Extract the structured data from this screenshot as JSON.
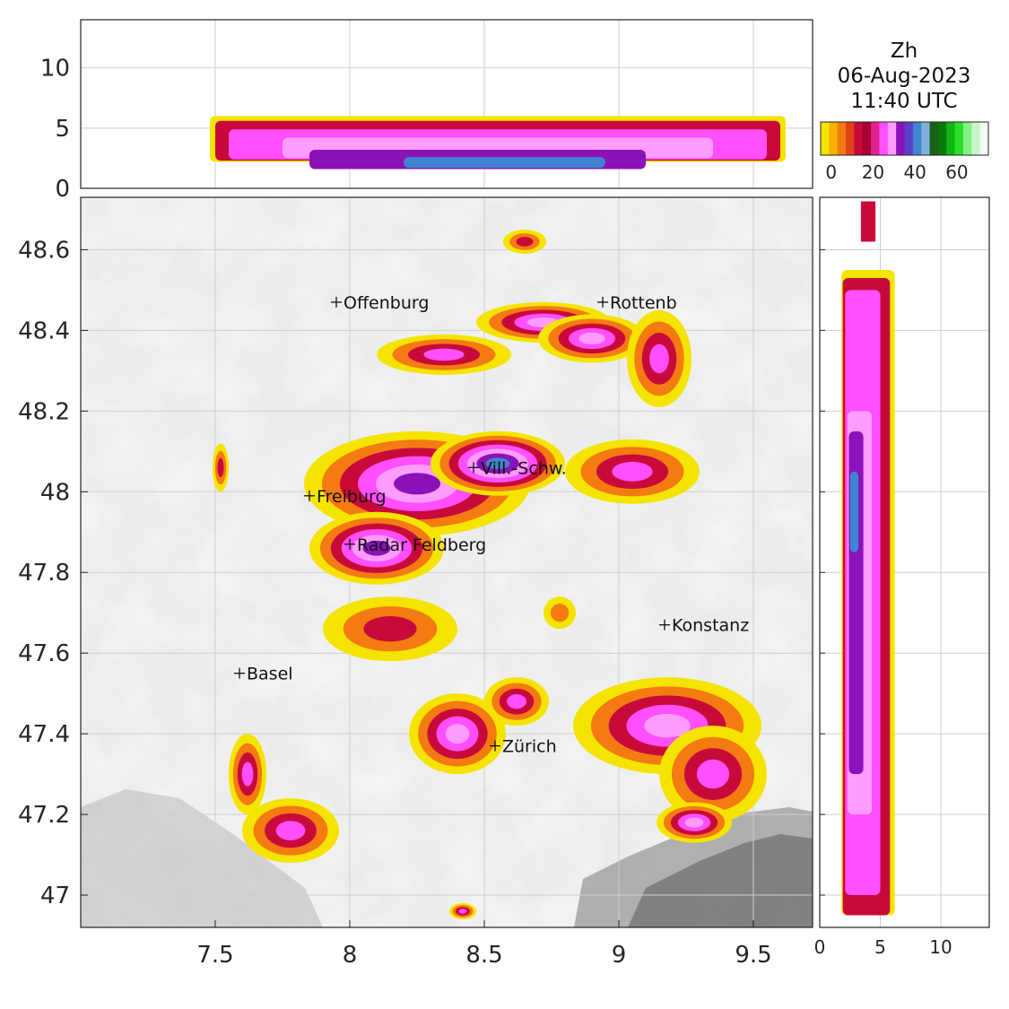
{
  "title": {
    "variable": "Zh",
    "date": "06-Aug-2023",
    "time": "11:40 UTC"
  },
  "colorbar": {
    "colors": [
      "#f5e400",
      "#f7b200",
      "#f47a12",
      "#e0431b",
      "#c80a3a",
      "#a80030",
      "#e12290",
      "#ff4fff",
      "#ff9cff",
      "#8a12b8",
      "#5a3fc9",
      "#3f84cf",
      "#7fb0dc",
      "#1a5f1a",
      "#097a09",
      "#11b511",
      "#28e028",
      "#86f086",
      "#c8f5c8",
      "#f4fbf4"
    ],
    "tick_labels": [
      "0",
      "20",
      "40",
      "60"
    ],
    "tick_values": [
      0,
      20,
      40,
      60
    ],
    "range": [
      -5,
      75
    ]
  },
  "main_map": {
    "x_ticks": [
      "7.5",
      "8",
      "8.5",
      "9",
      "9.5"
    ],
    "x_tick_values": [
      7.5,
      8,
      8.5,
      9,
      9.5
    ],
    "y_ticks": [
      "47",
      "47.2",
      "47.4",
      "47.6",
      "47.8",
      "48",
      "48.2",
      "48.4",
      "48.6"
    ],
    "y_tick_values": [
      47,
      47.2,
      47.4,
      47.6,
      47.8,
      48,
      48.2,
      48.4,
      48.6
    ],
    "xlim": [
      7.0,
      9.72
    ],
    "ylim": [
      46.92,
      48.73
    ],
    "cities": [
      {
        "name": "Offenburg",
        "lon": 7.95,
        "lat": 48.47
      },
      {
        "name": "Rottenb",
        "lon": 8.94,
        "lat": 48.47
      },
      {
        "name": "Vill.-Schw.",
        "lon": 8.46,
        "lat": 48.06
      },
      {
        "name": "Freiburg",
        "lon": 7.85,
        "lat": 47.99
      },
      {
        "name": "Radar Feldberg",
        "lon": 8.0,
        "lat": 47.87
      },
      {
        "name": "Konstanz",
        "lon": 9.17,
        "lat": 47.67
      },
      {
        "name": "Basel",
        "lon": 7.59,
        "lat": 47.55
      },
      {
        "name": "Zürich",
        "lon": 8.54,
        "lat": 47.37
      }
    ]
  },
  "top_panel": {
    "y_ticks": [
      "0",
      "5",
      "10"
    ],
    "y_tick_values": [
      0,
      5,
      10
    ],
    "ylim": [
      0,
      14
    ]
  },
  "right_panel": {
    "x_ticks": [
      "0",
      "5",
      "10"
    ],
    "x_tick_values": [
      0,
      5,
      10
    ],
    "xlim": [
      0,
      14
    ]
  }
}
